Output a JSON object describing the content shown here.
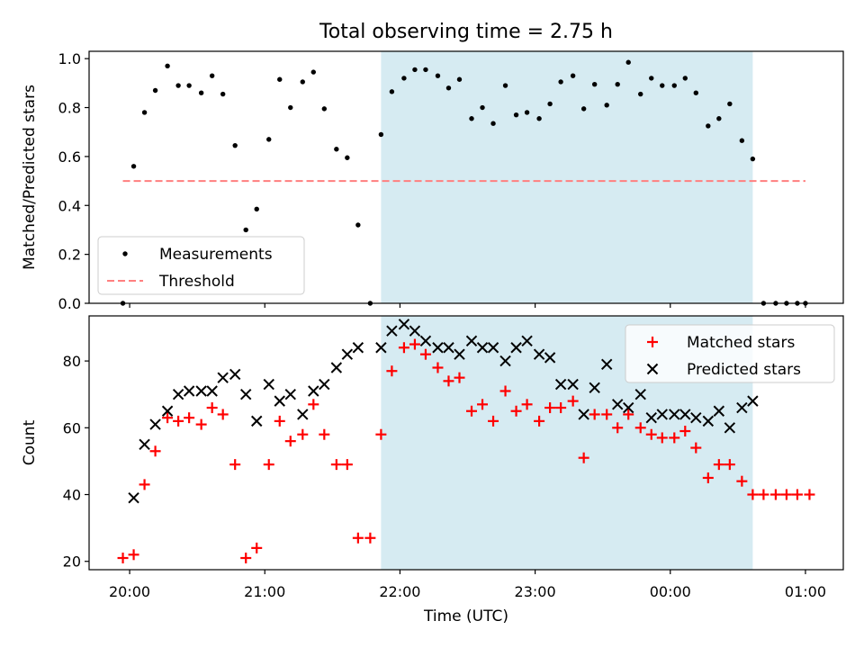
{
  "figure": {
    "title": "Total observing time = 2.75 h"
  },
  "chart_data": [
    {
      "type": "scatter",
      "ylabel": "Matched/Predicted stars",
      "xlim": [
        -0.3,
        5.28
      ],
      "ylim": [
        0,
        1.03
      ],
      "y_ticks": [
        0,
        0.2,
        0.4,
        0.6,
        0.8,
        1.0
      ],
      "y_tick_labels": [
        "0.0",
        "0.2",
        "0.4",
        "0.6",
        "0.8",
        "1.0"
      ],
      "shaded_span": {
        "x": [
          1.86,
          4.61
        ],
        "color": "#add8e6"
      },
      "legend": {
        "position": "lower-left",
        "entries": [
          "Measurements",
          "Threshold"
        ]
      },
      "threshold": {
        "name": "Threshold",
        "y": 0.5,
        "x": [
          -0.05,
          5.0
        ],
        "color": "#ff7f7f"
      },
      "series": [
        {
          "name": "Measurements",
          "marker": "dot",
          "color": "#000000",
          "points": [
            [
              -0.05,
              0.0
            ],
            [
              0.03,
              0.56
            ],
            [
              0.11,
              0.78
            ],
            [
              0.19,
              0.87
            ],
            [
              0.28,
              0.97
            ],
            [
              0.36,
              0.89
            ],
            [
              0.44,
              0.89
            ],
            [
              0.53,
              0.86
            ],
            [
              0.61,
              0.93
            ],
            [
              0.69,
              0.855
            ],
            [
              0.78,
              0.645
            ],
            [
              0.86,
              0.3
            ],
            [
              0.94,
              0.385
            ],
            [
              1.03,
              0.67
            ],
            [
              1.11,
              0.915
            ],
            [
              1.19,
              0.8
            ],
            [
              1.28,
              0.905
            ],
            [
              1.36,
              0.945
            ],
            [
              1.44,
              0.795
            ],
            [
              1.53,
              0.63
            ],
            [
              1.61,
              0.595
            ],
            [
              1.69,
              0.32
            ],
            [
              1.78,
              0.0
            ],
            [
              1.86,
              0.69
            ],
            [
              1.94,
              0.865
            ],
            [
              2.03,
              0.92
            ],
            [
              2.11,
              0.955
            ],
            [
              2.19,
              0.955
            ],
            [
              2.28,
              0.93
            ],
            [
              2.36,
              0.88
            ],
            [
              2.44,
              0.915
            ],
            [
              2.53,
              0.755
            ],
            [
              2.61,
              0.8
            ],
            [
              2.69,
              0.735
            ],
            [
              2.78,
              0.89
            ],
            [
              2.86,
              0.77
            ],
            [
              2.94,
              0.78
            ],
            [
              3.03,
              0.755
            ],
            [
              3.11,
              0.815
            ],
            [
              3.19,
              0.905
            ],
            [
              3.28,
              0.93
            ],
            [
              3.36,
              0.795
            ],
            [
              3.44,
              0.895
            ],
            [
              3.53,
              0.81
            ],
            [
              3.61,
              0.895
            ],
            [
              3.69,
              0.985
            ],
            [
              3.78,
              0.855
            ],
            [
              3.86,
              0.92
            ],
            [
              3.94,
              0.89
            ],
            [
              4.03,
              0.89
            ],
            [
              4.11,
              0.92
            ],
            [
              4.19,
              0.86
            ],
            [
              4.28,
              0.725
            ],
            [
              4.36,
              0.755
            ],
            [
              4.44,
              0.815
            ],
            [
              4.53,
              0.665
            ],
            [
              4.61,
              0.59
            ],
            [
              4.69,
              0.0
            ],
            [
              4.78,
              0.0
            ],
            [
              4.86,
              0.0
            ],
            [
              4.94,
              0.0
            ],
            [
              5.0,
              0.0
            ]
          ]
        }
      ]
    },
    {
      "type": "scatter",
      "xlabel": "Time (UTC)",
      "ylabel": "Count",
      "xlim": [
        -0.3,
        5.28
      ],
      "ylim": [
        17.5,
        93.5
      ],
      "x_ticks": [
        0,
        1,
        2,
        3,
        4,
        5
      ],
      "x_tick_labels": [
        "20:00",
        "21:00",
        "22:00",
        "23:00",
        "00:00",
        "01:00"
      ],
      "y_ticks": [
        20,
        40,
        60,
        80
      ],
      "y_tick_labels": [
        "20",
        "40",
        "60",
        "80"
      ],
      "shaded_span": {
        "x": [
          1.86,
          4.61
        ],
        "color": "#add8e6"
      },
      "legend": {
        "position": "upper-right",
        "entries": [
          "Matched stars",
          "Predicted stars"
        ]
      },
      "series": [
        {
          "name": "Matched stars",
          "marker": "plus",
          "color": "#ff0000",
          "points": [
            [
              -0.05,
              21
            ],
            [
              0.03,
              22
            ],
            [
              0.11,
              43
            ],
            [
              0.19,
              53
            ],
            [
              0.28,
              63
            ],
            [
              0.36,
              62
            ],
            [
              0.44,
              63
            ],
            [
              0.53,
              61
            ],
            [
              0.61,
              66
            ],
            [
              0.69,
              64
            ],
            [
              0.78,
              49
            ],
            [
              0.86,
              21
            ],
            [
              0.94,
              24
            ],
            [
              1.03,
              49
            ],
            [
              1.11,
              62
            ],
            [
              1.19,
              56
            ],
            [
              1.28,
              58
            ],
            [
              1.36,
              67
            ],
            [
              1.44,
              58
            ],
            [
              1.53,
              49
            ],
            [
              1.61,
              49
            ],
            [
              1.69,
              27
            ],
            [
              1.78,
              27
            ],
            [
              1.86,
              58
            ],
            [
              1.94,
              77
            ],
            [
              2.03,
              84
            ],
            [
              2.11,
              85
            ],
            [
              2.19,
              82
            ],
            [
              2.28,
              78
            ],
            [
              2.36,
              74
            ],
            [
              2.44,
              75
            ],
            [
              2.53,
              65
            ],
            [
              2.61,
              67
            ],
            [
              2.69,
              62
            ],
            [
              2.78,
              71
            ],
            [
              2.86,
              65
            ],
            [
              2.94,
              67
            ],
            [
              3.03,
              62
            ],
            [
              3.11,
              66
            ],
            [
              3.19,
              66
            ],
            [
              3.28,
              68
            ],
            [
              3.36,
              51
            ],
            [
              3.44,
              64
            ],
            [
              3.53,
              64
            ],
            [
              3.61,
              60
            ],
            [
              3.69,
              64
            ],
            [
              3.78,
              60
            ],
            [
              3.86,
              58
            ],
            [
              3.94,
              57
            ],
            [
              4.03,
              57
            ],
            [
              4.11,
              59
            ],
            [
              4.19,
              54
            ],
            [
              4.28,
              45
            ],
            [
              4.36,
              49
            ],
            [
              4.44,
              49
            ],
            [
              4.53,
              44
            ],
            [
              4.61,
              40
            ],
            [
              4.69,
              40
            ],
            [
              4.78,
              40
            ],
            [
              4.86,
              40
            ],
            [
              4.94,
              40
            ],
            [
              5.03,
              40
            ]
          ]
        },
        {
          "name": "Predicted stars",
          "marker": "x",
          "color": "#000000",
          "points": [
            [
              0.03,
              39
            ],
            [
              0.11,
              55
            ],
            [
              0.19,
              61
            ],
            [
              0.28,
              65
            ],
            [
              0.36,
              70
            ],
            [
              0.44,
              71
            ],
            [
              0.53,
              71
            ],
            [
              0.61,
              71
            ],
            [
              0.69,
              75
            ],
            [
              0.78,
              76
            ],
            [
              0.86,
              70
            ],
            [
              0.94,
              62
            ],
            [
              1.03,
              73
            ],
            [
              1.11,
              68
            ],
            [
              1.19,
              70
            ],
            [
              1.28,
              64
            ],
            [
              1.36,
              71
            ],
            [
              1.44,
              73
            ],
            [
              1.53,
              78
            ],
            [
              1.61,
              82
            ],
            [
              1.69,
              84
            ],
            [
              1.86,
              84
            ],
            [
              1.94,
              89
            ],
            [
              2.03,
              91
            ],
            [
              2.11,
              89
            ],
            [
              2.19,
              86
            ],
            [
              2.28,
              84
            ],
            [
              2.36,
              84
            ],
            [
              2.44,
              82
            ],
            [
              2.53,
              86
            ],
            [
              2.61,
              84
            ],
            [
              2.69,
              84
            ],
            [
              2.78,
              80
            ],
            [
              2.86,
              84
            ],
            [
              2.94,
              86
            ],
            [
              3.03,
              82
            ],
            [
              3.11,
              81
            ],
            [
              3.19,
              73
            ],
            [
              3.28,
              73
            ],
            [
              3.36,
              64
            ],
            [
              3.44,
              72
            ],
            [
              3.53,
              79
            ],
            [
              3.61,
              67
            ],
            [
              3.69,
              66
            ],
            [
              3.78,
              70
            ],
            [
              3.86,
              63
            ],
            [
              3.94,
              64
            ],
            [
              4.03,
              64
            ],
            [
              4.11,
              64
            ],
            [
              4.19,
              63
            ],
            [
              4.28,
              62
            ],
            [
              4.36,
              65
            ],
            [
              4.44,
              60
            ],
            [
              4.53,
              66
            ],
            [
              4.61,
              68
            ]
          ]
        }
      ]
    }
  ]
}
